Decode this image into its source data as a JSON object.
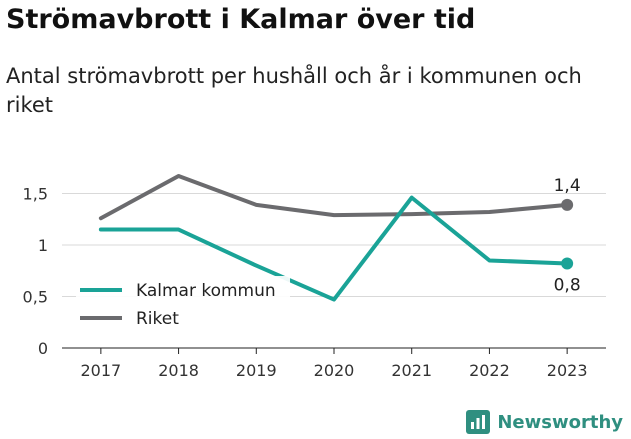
{
  "chart_data": {
    "type": "line",
    "title": "Strömavbrott i Kalmar över tid",
    "subtitle": "Antal strömavbrott per hushåll och år i kommunen och riket",
    "x": [
      "2017",
      "2018",
      "2019",
      "2020",
      "2021",
      "2022",
      "2023"
    ],
    "ylim": [
      0,
      1.7
    ],
    "yticks": [
      {
        "value": 0,
        "label": "0"
      },
      {
        "value": 0.5,
        "label": "0,5"
      },
      {
        "value": 1,
        "label": "1"
      },
      {
        "value": 1.5,
        "label": "1,5"
      }
    ],
    "grid": true,
    "legend_position": "bottom-left",
    "series": [
      {
        "name": "Kalmar kommun",
        "color": "#1aa397",
        "values": [
          1.15,
          1.15,
          0.8,
          0.47,
          1.46,
          0.85,
          0.82
        ],
        "end_label": "0,8"
      },
      {
        "name": "Riket",
        "color": "#6b6b6e",
        "values": [
          1.26,
          1.67,
          1.39,
          1.29,
          1.3,
          1.32,
          1.39
        ],
        "end_label": "1,4"
      }
    ]
  },
  "brand": {
    "name": "Newsworthy",
    "color": "#2f8f80"
  }
}
